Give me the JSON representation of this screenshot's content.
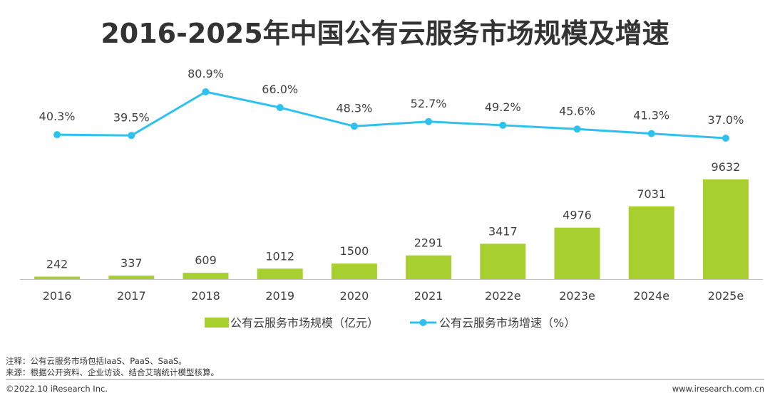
{
  "chart_data": {
    "type": "bar",
    "title": "2016-2025年中国公有云服务市场规模及增速",
    "categories": [
      "2016",
      "2017",
      "2018",
      "2019",
      "2020",
      "2021",
      "2022e",
      "2023e",
      "2024e",
      "2025e"
    ],
    "series": [
      {
        "name": "公有云服务市场规模（亿元）",
        "type": "bar",
        "values": [
          242,
          337,
          609,
          1012,
          1500,
          2291,
          3417,
          4976,
          7031,
          9632
        ],
        "labels": [
          "242",
          "337",
          "609",
          "1012",
          "1500",
          "2291",
          "3417",
          "4976",
          "7031",
          "9632"
        ],
        "color": "#a8cf30"
      },
      {
        "name": "公有云服务市场增速（%）",
        "type": "line",
        "values": [
          40.3,
          39.5,
          80.9,
          66.0,
          48.3,
          52.7,
          49.2,
          45.6,
          41.3,
          37.0
        ],
        "labels": [
          "40.3%",
          "39.5%",
          "80.9%",
          "66.0%",
          "48.3%",
          "52.7%",
          "49.2%",
          "45.6%",
          "41.3%",
          "37.0%"
        ],
        "color": "#2ec0ee"
      }
    ],
    "bar_axis_range": [
      0,
      10000
    ],
    "line_axis_range": [
      0,
      80.9
    ],
    "legend": "bottom-center",
    "grid": false
  },
  "notes": {
    "note": "注释：公有云服务市场包括IaaS、PaaS、SaaS。",
    "source": "来源：根据公开资料、企业访谈、结合艾瑞统计模型核算。"
  },
  "footer": {
    "copyright": "©2022.10 iResearch Inc.",
    "website": "www.iresearch.com.cn"
  }
}
